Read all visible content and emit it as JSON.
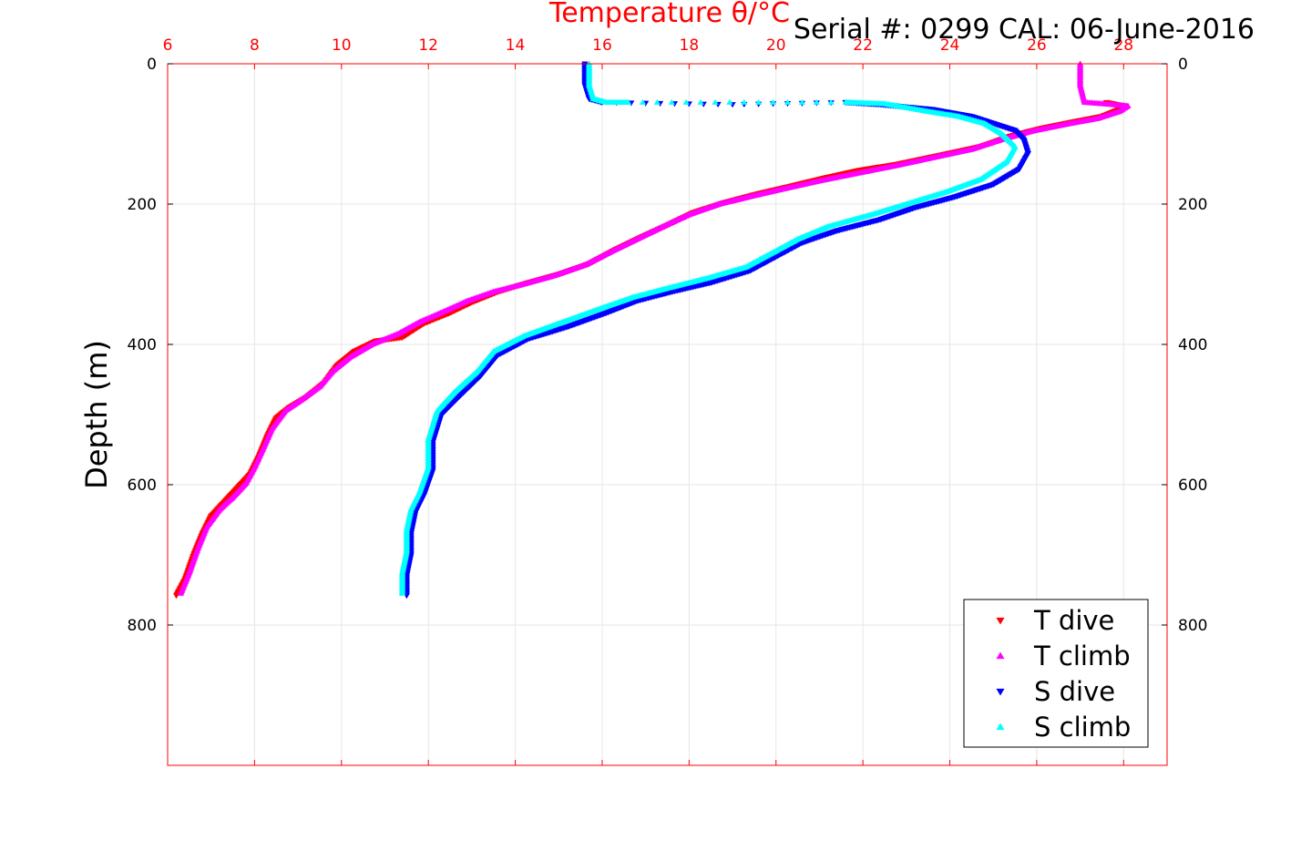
{
  "chart_data": {
    "type": "scatter",
    "title": "Serial #: 0299 CAL: 06-June-2016",
    "xlabel": "Temperature θ/°C",
    "ylabel": "Depth (m)",
    "xlim": [
      6,
      29
    ],
    "ylim": [
      0,
      1000
    ],
    "y_reversed": true,
    "x_ticks": [
      6,
      8,
      10,
      12,
      14,
      16,
      18,
      20,
      22,
      24,
      26,
      28
    ],
    "y_ticks": [
      0,
      200,
      400,
      600,
      800
    ],
    "grid": true,
    "legend_position": "bottom-right",
    "axis_color": "#ff0000",
    "series": [
      {
        "name": "T dive",
        "marker": "triangle-down",
        "color": "#ff0000",
        "points": [
          [
            6.2,
            758
          ],
          [
            6.4,
            735
          ],
          [
            6.6,
            700
          ],
          [
            6.8,
            670
          ],
          [
            7.0,
            645
          ],
          [
            7.3,
            625
          ],
          [
            7.6,
            605
          ],
          [
            7.9,
            585
          ],
          [
            8.1,
            560
          ],
          [
            8.3,
            530
          ],
          [
            8.5,
            505
          ],
          [
            8.8,
            490
          ],
          [
            9.2,
            475
          ],
          [
            9.6,
            455
          ],
          [
            9.9,
            430
          ],
          [
            10.3,
            410
          ],
          [
            10.8,
            395
          ],
          [
            11.4,
            390
          ],
          [
            11.9,
            370
          ],
          [
            12.5,
            355
          ],
          [
            13.0,
            340
          ],
          [
            13.6,
            325
          ],
          [
            14.3,
            312
          ],
          [
            15.0,
            300
          ],
          [
            15.7,
            285
          ],
          [
            16.3,
            265
          ],
          [
            16.9,
            247
          ],
          [
            17.5,
            230
          ],
          [
            18.1,
            212
          ],
          [
            18.8,
            198
          ],
          [
            19.6,
            185
          ],
          [
            20.3,
            175
          ],
          [
            21.1,
            163
          ],
          [
            21.9,
            152
          ],
          [
            22.8,
            143
          ],
          [
            23.8,
            130
          ],
          [
            24.7,
            118
          ],
          [
            25.4,
            103
          ],
          [
            26.1,
            92
          ],
          [
            26.9,
            82
          ],
          [
            27.5,
            75
          ],
          [
            27.9,
            65
          ],
          [
            28.0,
            60
          ],
          [
            27.6,
            55
          ]
        ]
      },
      {
        "name": "T climb",
        "marker": "triangle-up",
        "color": "#ff00ff",
        "points": [
          [
            6.3,
            755
          ],
          [
            6.5,
            725
          ],
          [
            6.7,
            690
          ],
          [
            6.9,
            660
          ],
          [
            7.2,
            635
          ],
          [
            7.5,
            618
          ],
          [
            7.8,
            598
          ],
          [
            8.0,
            575
          ],
          [
            8.2,
            548
          ],
          [
            8.4,
            520
          ],
          [
            8.7,
            495
          ],
          [
            9.1,
            478
          ],
          [
            9.5,
            460
          ],
          [
            9.8,
            438
          ],
          [
            10.2,
            418
          ],
          [
            10.7,
            400
          ],
          [
            11.3,
            385
          ],
          [
            11.8,
            368
          ],
          [
            12.4,
            352
          ],
          [
            12.9,
            338
          ],
          [
            13.5,
            325
          ],
          [
            14.2,
            314
          ],
          [
            14.9,
            302
          ],
          [
            15.6,
            287
          ],
          [
            16.2,
            268
          ],
          [
            16.8,
            250
          ],
          [
            17.4,
            232
          ],
          [
            18.0,
            215
          ],
          [
            18.7,
            200
          ],
          [
            19.5,
            188
          ],
          [
            20.2,
            178
          ],
          [
            21.0,
            167
          ],
          [
            21.8,
            157
          ],
          [
            22.7,
            146
          ],
          [
            23.6,
            134
          ],
          [
            24.5,
            122
          ],
          [
            25.2,
            108
          ],
          [
            25.9,
            96
          ],
          [
            26.7,
            86
          ],
          [
            27.4,
            78
          ],
          [
            27.9,
            68
          ],
          [
            28.1,
            60
          ],
          [
            27.1,
            55
          ],
          [
            27.0,
            30
          ],
          [
            27.0,
            0
          ]
        ]
      },
      {
        "name": "S dive",
        "marker": "triangle-down",
        "color": "#0000ff",
        "points": [
          [
            11.5,
            758
          ],
          [
            11.5,
            730
          ],
          [
            11.6,
            700
          ],
          [
            11.6,
            670
          ],
          [
            11.7,
            640
          ],
          [
            11.9,
            615
          ],
          [
            12.1,
            580
          ],
          [
            12.1,
            540
          ],
          [
            12.3,
            500
          ],
          [
            12.7,
            475
          ],
          [
            13.2,
            445
          ],
          [
            13.6,
            415
          ],
          [
            14.3,
            392
          ],
          [
            15.2,
            375
          ],
          [
            16.1,
            355
          ],
          [
            16.8,
            338
          ],
          [
            17.6,
            325
          ],
          [
            18.5,
            312
          ],
          [
            19.4,
            295
          ],
          [
            20.0,
            275
          ],
          [
            20.6,
            255
          ],
          [
            21.4,
            238
          ],
          [
            22.4,
            222
          ],
          [
            23.2,
            205
          ],
          [
            24.1,
            190
          ],
          [
            25.0,
            172
          ],
          [
            25.6,
            150
          ],
          [
            25.8,
            128
          ],
          [
            25.7,
            108
          ],
          [
            25.5,
            95
          ],
          [
            24.5,
            75
          ],
          [
            23.6,
            65
          ],
          [
            22.4,
            58
          ],
          [
            21.6,
            55
          ],
          [
            19.0,
            58
          ],
          [
            16.0,
            55
          ],
          [
            15.7,
            50
          ],
          [
            15.6,
            30
          ],
          [
            15.6,
            0
          ]
        ]
      },
      {
        "name": "S climb",
        "marker": "triangle-up",
        "color": "#00ffff",
        "points": [
          [
            11.4,
            755
          ],
          [
            11.4,
            725
          ],
          [
            11.5,
            695
          ],
          [
            11.5,
            665
          ],
          [
            11.6,
            635
          ],
          [
            11.8,
            610
          ],
          [
            12.0,
            575
          ],
          [
            12.0,
            535
          ],
          [
            12.2,
            495
          ],
          [
            12.6,
            468
          ],
          [
            13.1,
            440
          ],
          [
            13.5,
            410
          ],
          [
            14.2,
            388
          ],
          [
            15.1,
            368
          ],
          [
            16.0,
            348
          ],
          [
            16.7,
            333
          ],
          [
            17.5,
            320
          ],
          [
            18.4,
            306
          ],
          [
            19.3,
            290
          ],
          [
            19.9,
            270
          ],
          [
            20.5,
            250
          ],
          [
            21.2,
            232
          ],
          [
            22.2,
            215
          ],
          [
            23.0,
            200
          ],
          [
            23.9,
            183
          ],
          [
            24.7,
            165
          ],
          [
            25.3,
            140
          ],
          [
            25.5,
            118
          ],
          [
            25.2,
            100
          ],
          [
            24.8,
            85
          ],
          [
            24.2,
            75
          ],
          [
            23.5,
            68
          ],
          [
            22.5,
            57
          ],
          [
            21.6,
            55
          ],
          [
            16.6,
            55
          ],
          [
            16.1,
            55
          ],
          [
            15.8,
            50
          ],
          [
            15.7,
            30
          ],
          [
            15.7,
            0
          ]
        ]
      }
    ]
  }
}
